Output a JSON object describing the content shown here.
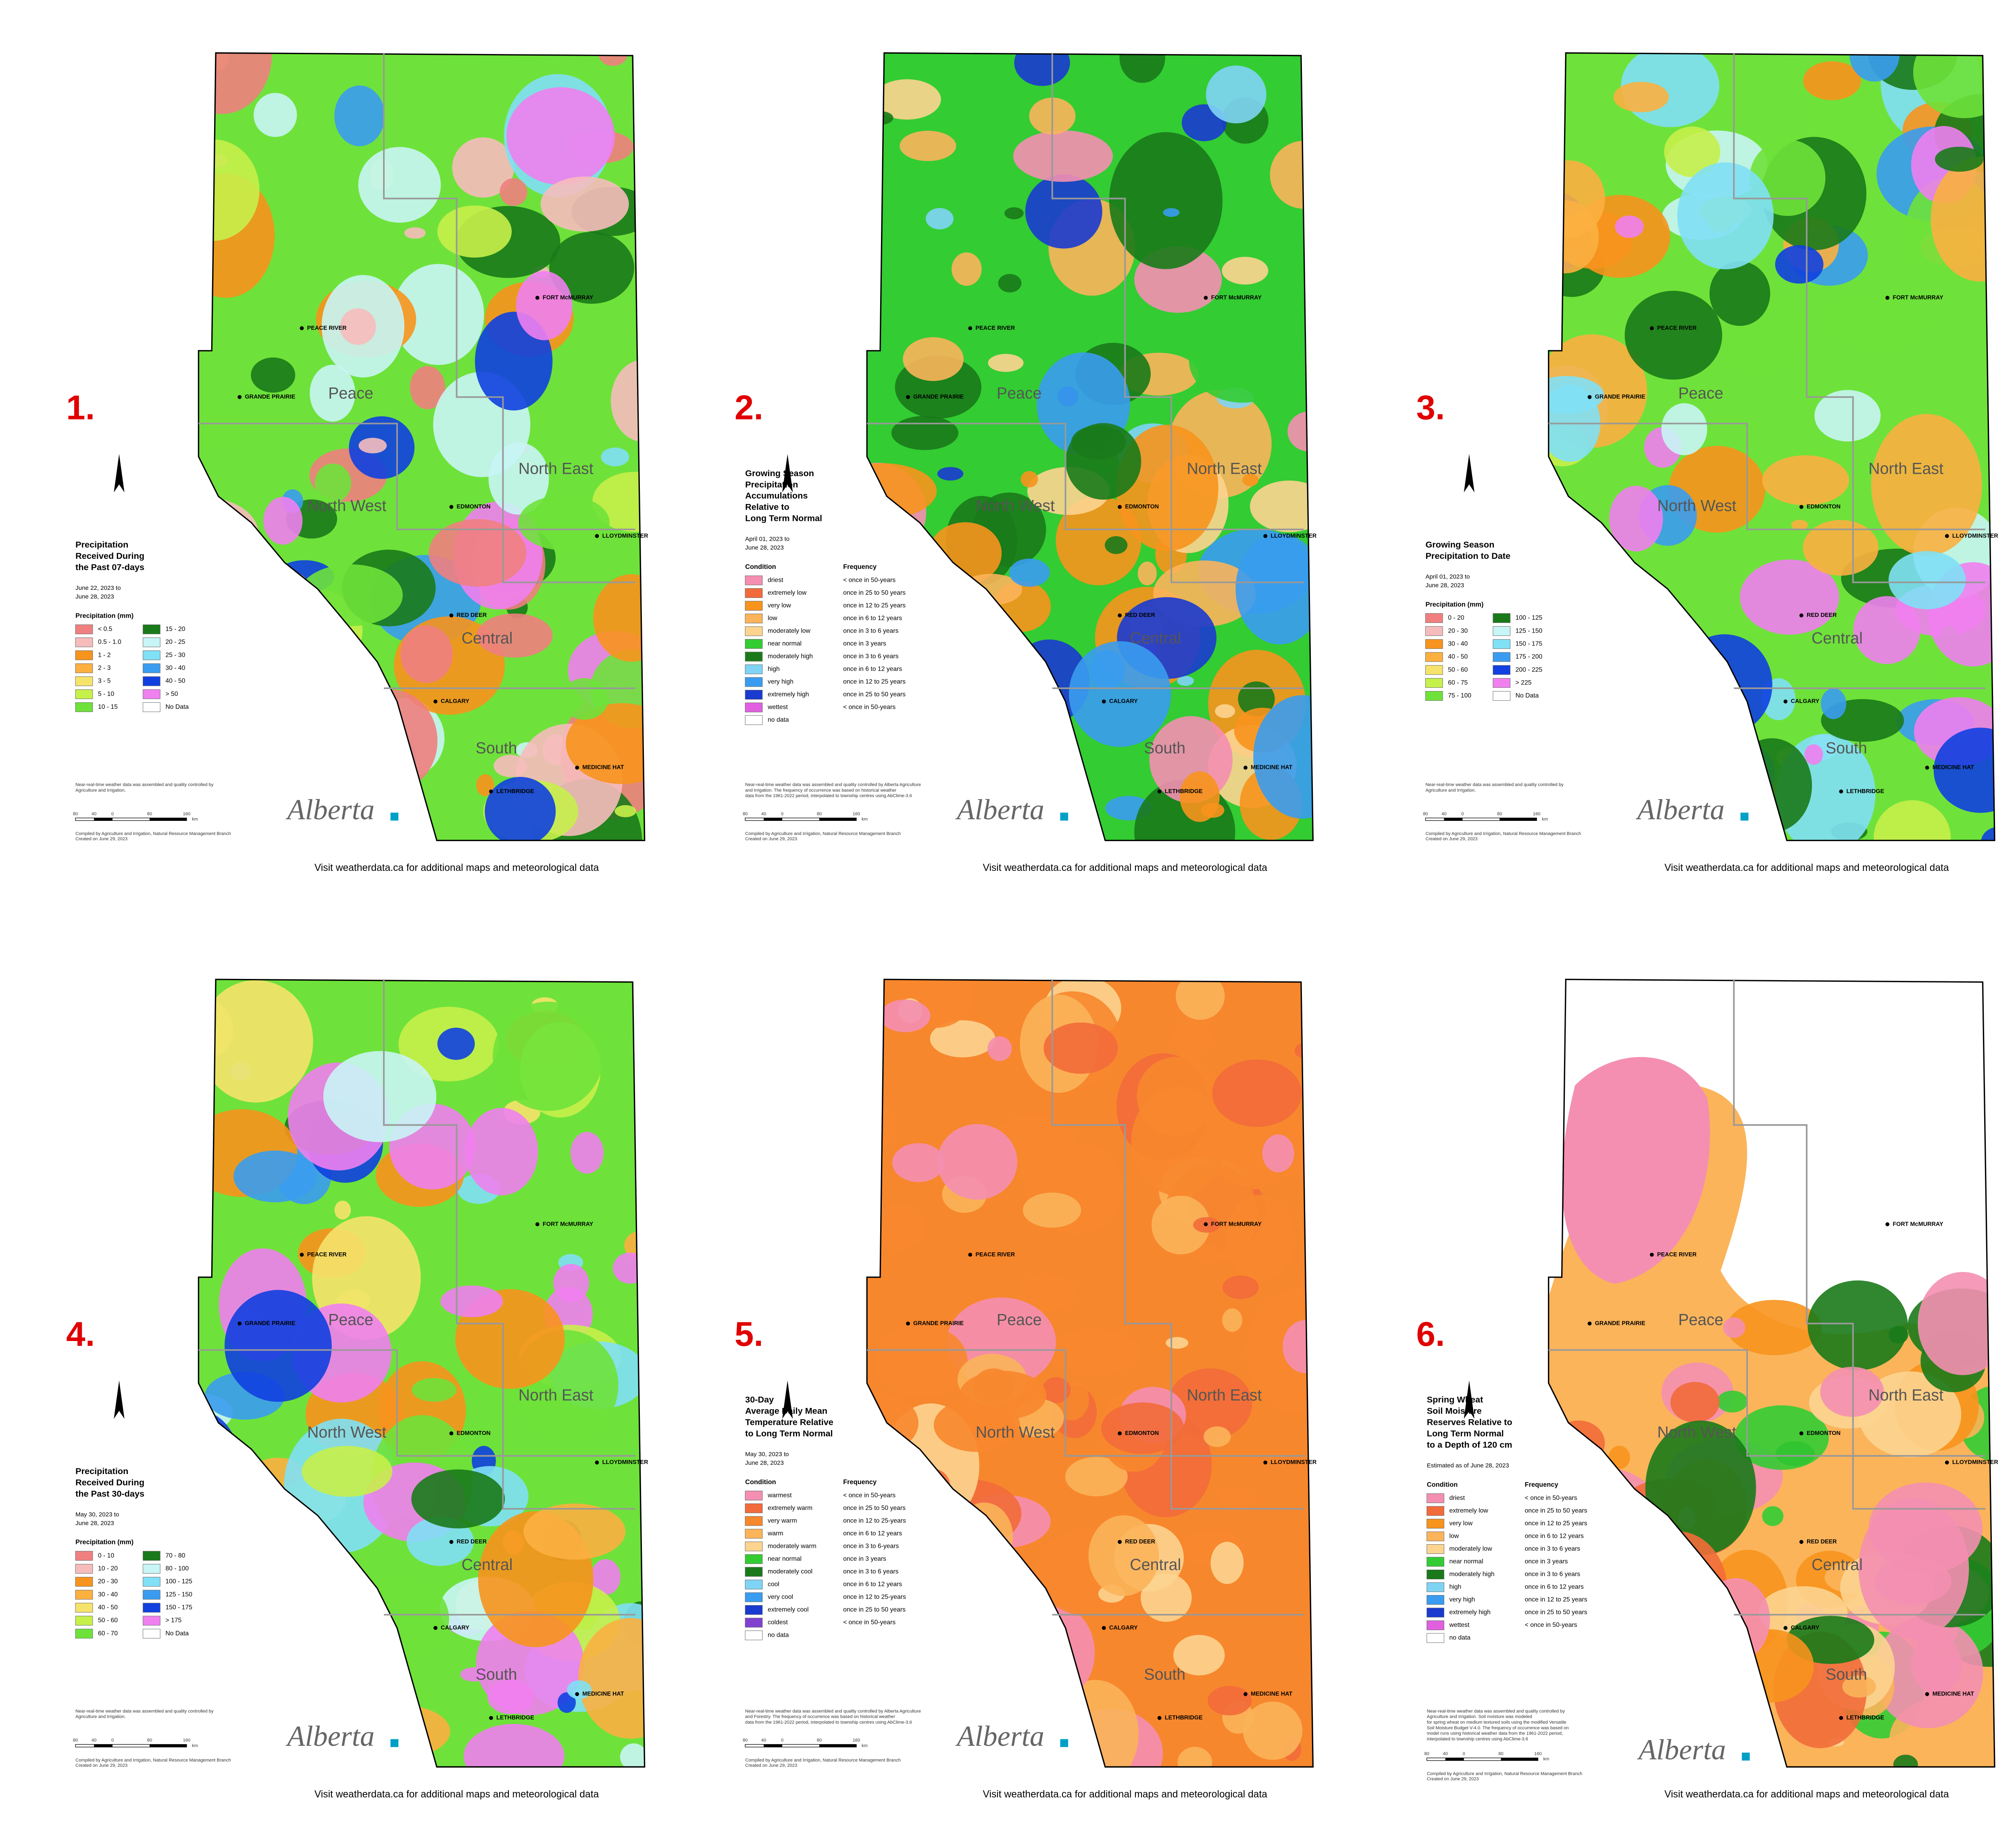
{
  "map": {
    "regions": [
      {
        "name": "Peace"
      },
      {
        "name": "North West"
      },
      {
        "name": "North East"
      },
      {
        "name": "Central"
      },
      {
        "name": "South"
      }
    ],
    "cities": [
      "PEACE RIVER",
      "GRANDE PRAIRIE",
      "FORT McMURRAY",
      "EDMONTON",
      "LLOYDMINSTER",
      "RED DEER",
      "CALGARY",
      "MEDICINE HAT",
      "LETHBRIDGE"
    ]
  },
  "footer": "Visit weatherdata.ca for additional maps and meteorological data",
  "logo": "Alberta",
  "scale": {
    "labels": [
      "80",
      "40",
      "0",
      "80",
      "160"
    ],
    "unit": "km"
  },
  "compiled": [
    "Compiled by Agriculture and Irrigation, Natural Resource Management Branch",
    "Created on June 29, 2023"
  ],
  "panels": [
    {
      "number": "1.",
      "title": [
        "Precipitation",
        "Received During",
        "the Past 07-days"
      ],
      "dates": [
        "June 22, 2023 to",
        "June 28, 2023"
      ],
      "legend_title": "Precipitation (mm)",
      "legend": [
        {
          "label": "< 0.5",
          "color": "#f08080"
        },
        {
          "label": "0.5 - 1.0",
          "color": "#f6bcbc"
        },
        {
          "label": "1 - 2",
          "color": "#f7941d"
        },
        {
          "label": "2 - 3",
          "color": "#fbb040"
        },
        {
          "label": "3 - 5",
          "color": "#f5e36b"
        },
        {
          "label": "5 - 10",
          "color": "#c6f04a"
        },
        {
          "label": "10 - 15",
          "color": "#6ee23a"
        },
        {
          "label": "15 - 20",
          "color": "#1a7a1a"
        },
        {
          "label": "20 - 25",
          "color": "#c8f5f5"
        },
        {
          "label": "25 - 30",
          "color": "#80e0f5"
        },
        {
          "label": "30 - 40",
          "color": "#3a9cf0"
        },
        {
          "label": "40 - 50",
          "color": "#1040e0"
        },
        {
          "label": "> 50",
          "color": "#f080f0"
        },
        {
          "label": "No Data",
          "color": "#ffffff"
        }
      ],
      "notes": [
        "Near-real-time weather data was assembled and quality controlled by",
        "Agriculture and Irrigation."
      ]
    },
    {
      "number": "2.",
      "title": [
        "Growing Season",
        "Precipitation",
        "Accumulations",
        "Relative to",
        "Long Term Normal"
      ],
      "dates": [
        "April 01, 2023 to",
        "June 28, 2023"
      ],
      "legend_headers": [
        "Condition",
        "Frequency"
      ],
      "legend": [
        {
          "label": "driest",
          "frequency": "< once in 50-years",
          "color": "#f48fb1"
        },
        {
          "label": "extremely low",
          "frequency": "once in 25 to 50 years",
          "color": "#f26b3a"
        },
        {
          "label": "very low",
          "frequency": "once in 12 to 25 years",
          "color": "#f7941d"
        },
        {
          "label": "low",
          "frequency": "once in 6 to 12 years",
          "color": "#fbb45a"
        },
        {
          "label": "moderately low",
          "frequency": "once in 3 to 6 years",
          "color": "#fcd490"
        },
        {
          "label": "near normal",
          "frequency": "once in 3 years",
          "color": "#33cc33"
        },
        {
          "label": "moderately high",
          "frequency": "once in 3 to 6 years",
          "color": "#1a7a1a"
        },
        {
          "label": "high",
          "frequency": "once in 6 to 12 years",
          "color": "#7fd4f5"
        },
        {
          "label": "very high",
          "frequency": "once in 12 to 25 years",
          "color": "#3a9cf0"
        },
        {
          "label": "extremely high",
          "frequency": "once in 25 to 50 years",
          "color": "#1a3ad0"
        },
        {
          "label": "wettest",
          "frequency": "< once in 50-years",
          "color": "#e060e0"
        },
        {
          "label": "no data",
          "color": "#ffffff"
        }
      ],
      "notes": [
        "Near-real-time weather data was assembled and quality controlled by Alberta Agriculture",
        "and Irrigation. The frequency of occurrence was based on historical weather",
        "data from the 1961-2022 period, interpolated to township centres using AbClime-3.6"
      ]
    },
    {
      "number": "3.",
      "title": [
        "Growing Season",
        "Precipitation to Date"
      ],
      "dates": [
        "April 01, 2023 to",
        "June 28, 2023"
      ],
      "legend_title": "Precipitation (mm)",
      "legend": [
        {
          "label": "0 - 20",
          "color": "#f08080"
        },
        {
          "label": "20 - 30",
          "color": "#f6bcbc"
        },
        {
          "label": "30 - 40",
          "color": "#f7941d"
        },
        {
          "label": "40 - 50",
          "color": "#fbb040"
        },
        {
          "label": "50 - 60",
          "color": "#f5e36b"
        },
        {
          "label": "60 - 75",
          "color": "#c6f04a"
        },
        {
          "label": "75 - 100",
          "color": "#6ee23a"
        },
        {
          "label": "100 - 125",
          "color": "#1a7a1a"
        },
        {
          "label": "125 - 150",
          "color": "#c8f5f5"
        },
        {
          "label": "150 - 175",
          "color": "#80e0f5"
        },
        {
          "label": "175 - 200",
          "color": "#3a9cf0"
        },
        {
          "label": "200 - 225",
          "color": "#1040e0"
        },
        {
          "label": "> 225",
          "color": "#f080f0"
        },
        {
          "label": "No Data",
          "color": "#ffffff"
        }
      ],
      "notes": [
        "Near-real-time weather data was assembled and quality controlled by",
        "Agriculture and Irrigation."
      ]
    },
    {
      "number": "4.",
      "title": [
        "Precipitation",
        "Received During",
        "the Past 30-days"
      ],
      "dates": [
        "May 30, 2023 to",
        "June 28, 2023"
      ],
      "legend_title": "Precipitation (mm)",
      "legend": [
        {
          "label": "0 - 10",
          "color": "#f08080"
        },
        {
          "label": "10 - 20",
          "color": "#f6bcbc"
        },
        {
          "label": "20 - 30",
          "color": "#f7941d"
        },
        {
          "label": "30 - 40",
          "color": "#fbb040"
        },
        {
          "label": "40 - 50",
          "color": "#f5e36b"
        },
        {
          "label": "50 - 60",
          "color": "#c6f04a"
        },
        {
          "label": "60 - 70",
          "color": "#6ee23a"
        },
        {
          "label": "70 - 80",
          "color": "#1a7a1a"
        },
        {
          "label": "80 - 100",
          "color": "#c8f5f5"
        },
        {
          "label": "100 - 125",
          "color": "#80e0f5"
        },
        {
          "label": "125 - 150",
          "color": "#3a9cf0"
        },
        {
          "label": "150 - 175",
          "color": "#1040e0"
        },
        {
          "label": "> 175",
          "color": "#f080f0"
        },
        {
          "label": "No Data",
          "color": "#ffffff"
        }
      ],
      "notes": [
        "Near-real-time weather data was assembled and quality controlled by",
        "Agriculture and Irrigation."
      ]
    },
    {
      "number": "5.",
      "title": [
        "30-Day",
        "Average Daily Mean",
        "Temperature Relative",
        "to Long Term Normal"
      ],
      "dates": [
        "May 30, 2023 to",
        "June 28, 2023"
      ],
      "legend_headers": [
        "Condition",
        "Frequency"
      ],
      "legend": [
        {
          "label": "warmest",
          "frequency": "< once in 50-years",
          "color": "#f48fb1"
        },
        {
          "label": "extremely warm",
          "frequency": "once in 25 to 50 years",
          "color": "#f26b3a"
        },
        {
          "label": "very warm",
          "frequency": "once in 12 to 25-years",
          "color": "#f7872d"
        },
        {
          "label": "warm",
          "frequency": "once in 6 to 12 years",
          "color": "#fbb45a"
        },
        {
          "label": "moderately warm",
          "frequency": "once in 3 to 6-years",
          "color": "#fcd490"
        },
        {
          "label": "near normal",
          "frequency": "once in 3 years",
          "color": "#33cc33"
        },
        {
          "label": "moderately cool",
          "frequency": "once in 3 to 6 years",
          "color": "#1a7a1a"
        },
        {
          "label": "cool",
          "frequency": "once in 6 to 12 years",
          "color": "#7fd4f5"
        },
        {
          "label": "very cool",
          "frequency": "once in 12 to 25-years",
          "color": "#3a9cf0"
        },
        {
          "label": "extremely cool",
          "frequency": "once in 25 to 50 years",
          "color": "#1a3ad0"
        },
        {
          "label": "coldest",
          "frequency": "< once in 50-years",
          "color": "#8040d0"
        },
        {
          "label": "no data",
          "color": "#ffffff"
        }
      ],
      "notes": [
        "Near-real-time weather data was assembled and quality controlled by Alberta Agriculture",
        "and Forestry. The frequency of occurrence was based on historical weather",
        "data from the 1961-2022 period, interpolated to township centres using AbClime-3.6"
      ]
    },
    {
      "number": "6.",
      "title": [
        "Spring Wheat",
        "Soil Moisture",
        "Reserves Relative to",
        "Long Term Normal",
        "to a Depth of 120 cm"
      ],
      "dates": [
        "Estimated as of June 28, 2023"
      ],
      "legend_headers": [
        "Condition",
        "Frequency"
      ],
      "legend": [
        {
          "label": "driest",
          "frequency": "< once in 50-years",
          "color": "#f48fb1"
        },
        {
          "label": "extremely low",
          "frequency": "once in 25 to 50 years",
          "color": "#f26b3a"
        },
        {
          "label": "very low",
          "frequency": "once in 12 to 25 years",
          "color": "#f7941d"
        },
        {
          "label": "low",
          "frequency": "once in 6 to 12 years",
          "color": "#fbb45a"
        },
        {
          "label": "moderately low",
          "frequency": "once in 3 to 6 years",
          "color": "#fcd490"
        },
        {
          "label": "near normal",
          "frequency": "once in 3 years",
          "color": "#33cc33"
        },
        {
          "label": "moderately high",
          "frequency": "once in 3 to 6 years",
          "color": "#1a7a1a"
        },
        {
          "label": "high",
          "frequency": "once in 6 to 12 years",
          "color": "#7fd4f5"
        },
        {
          "label": "very high",
          "frequency": "once in 12 to 25 years",
          "color": "#3a9cf0"
        },
        {
          "label": "extremely high",
          "frequency": "once in 25 to 50 years",
          "color": "#1a3ad0"
        },
        {
          "label": "wettest",
          "frequency": "< once in 50-years",
          "color": "#e060e0"
        },
        {
          "label": "no data",
          "color": "#ffffff"
        }
      ],
      "notes": [
        "Near-real-time weather data was assembled and quality controlled by",
        "Agriculture and Irrigation. Soil moisture was modeled",
        "for spring wheat on medium textured soils using the modified Versatile",
        "Soil Moisture Budget V-4.0. The frequency of occurrence was based on",
        "model runs using historical weather data from the 1961-2022 period,",
        "interpolated to township centres using AbClime-3.6"
      ]
    }
  ]
}
